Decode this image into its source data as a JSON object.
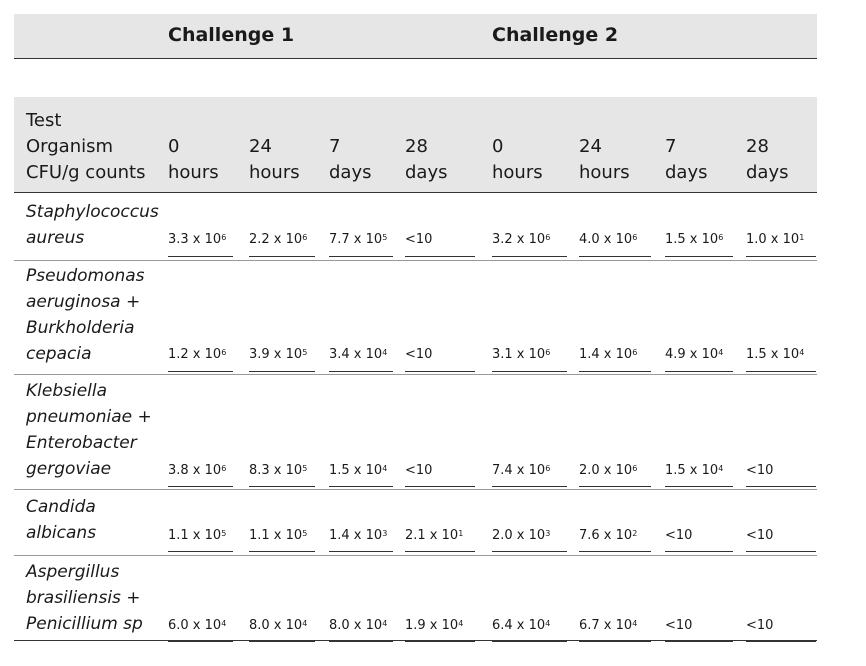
{
  "challenges": [
    "Challenge 1",
    "Challenge 2"
  ],
  "header": {
    "organism_label": [
      "Test",
      "Organism",
      "CFU/g counts"
    ],
    "columns": [
      [
        "0",
        "hours"
      ],
      [
        "24",
        "hours"
      ],
      [
        "7",
        "days"
      ],
      [
        "28",
        "days"
      ],
      [
        "0",
        "hours"
      ],
      [
        "24",
        "hours"
      ],
      [
        "7",
        "days"
      ],
      [
        "28",
        "days"
      ]
    ]
  },
  "rows": [
    {
      "organism": [
        "Staphylococcus",
        "aureus"
      ],
      "values": [
        {
          "m": "3.3 x 10",
          "e": "6"
        },
        {
          "m": "2.2 x 10",
          "e": "6"
        },
        {
          "m": "7.7 x 10",
          "e": "5"
        },
        {
          "m": "<10",
          "e": ""
        },
        {
          "m": "3.2 x 10",
          "e": "6"
        },
        {
          "m": "4.0 x 10",
          "e": "6"
        },
        {
          "m": "1.5 x 10",
          "e": "6"
        },
        {
          "m": "1.0 x 10",
          "e": "1"
        }
      ]
    },
    {
      "organism": [
        "Pseudomonas",
        "aeruginosa +",
        "Burkholderia",
        "cepacia"
      ],
      "values": [
        {
          "m": "1.2 x 10",
          "e": "6"
        },
        {
          "m": "3.9 x 10",
          "e": "5"
        },
        {
          "m": "3.4 x 10",
          "e": "4"
        },
        {
          "m": "<10",
          "e": ""
        },
        {
          "m": "3.1 x 10",
          "e": "6"
        },
        {
          "m": "1.4 x 10",
          "e": "6"
        },
        {
          "m": "4.9 x 10",
          "e": "4"
        },
        {
          "m": "1.5 x 10",
          "e": "4"
        }
      ]
    },
    {
      "organism": [
        "Klebsiella",
        "pneumoniae +",
        "Enterobacter",
        "gergoviae"
      ],
      "values": [
        {
          "m": "3.8 x 10",
          "e": "6"
        },
        {
          "m": "8.3 x 10",
          "e": "5"
        },
        {
          "m": "1.5 x 10",
          "e": "4"
        },
        {
          "m": "<10",
          "e": ""
        },
        {
          "m": "7.4 x 10",
          "e": "6"
        },
        {
          "m": "2.0 x 10",
          "e": "6"
        },
        {
          "m": "1.5 x 10",
          "e": "4"
        },
        {
          "m": "<10",
          "e": ""
        }
      ]
    },
    {
      "organism": [
        "Candida",
        "albicans"
      ],
      "values": [
        {
          "m": "1.1 x 10",
          "e": "5"
        },
        {
          "m": "1.1 x 10",
          "e": "5"
        },
        {
          "m": "1.4 x 10",
          "e": "3"
        },
        {
          "m": "2.1 x 10",
          "e": "1"
        },
        {
          "m": "2.0 x 10",
          "e": "3"
        },
        {
          "m": "7.6 x 10",
          "e": "2"
        },
        {
          "m": "<10",
          "e": ""
        },
        {
          "m": "<10",
          "e": ""
        }
      ]
    },
    {
      "organism": [
        "Aspergillus",
        "brasiliensis +",
        "Penicillium sp"
      ],
      "values": [
        {
          "m": "6.0 x 10",
          "e": "4"
        },
        {
          "m": "8.0 x 10",
          "e": "4"
        },
        {
          "m": "8.0 x 10",
          "e": "4"
        },
        {
          "m": "1.9 x 10",
          "e": "4"
        },
        {
          "m": "6.4 x 10",
          "e": "4"
        },
        {
          "m": "6.7 x 10",
          "e": "4"
        },
        {
          "m": "<10",
          "e": ""
        },
        {
          "m": "<10",
          "e": ""
        }
      ]
    }
  ]
}
